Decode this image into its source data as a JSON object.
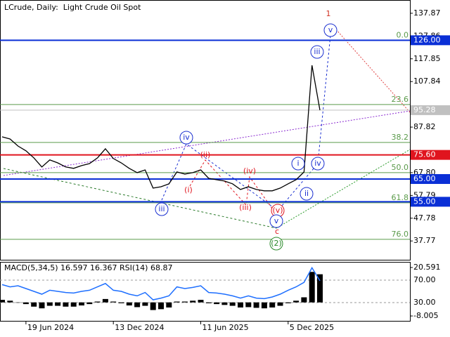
{
  "chart_data": [
    {
      "type": "line",
      "title": "LCrude, Daily:  Light Crude Oil Spot",
      "color": "#000000",
      "categories": [
        null,
        null,
        null,
        "19 Jun 2024",
        null,
        null,
        null,
        null,
        null,
        null,
        null,
        null,
        null,
        null,
        "13 Dec 2024",
        null,
        null,
        null,
        null,
        null,
        null,
        null,
        null,
        null,
        null,
        "11 Jun 2025",
        null,
        null,
        null,
        null,
        null,
        null,
        null,
        null,
        null,
        null,
        "5 Dec 2025",
        null,
        null,
        null,
        null
      ],
      "values": [
        83.55,
        82.6,
        79.5,
        77.4,
        74.3,
        70.3,
        73.4,
        72.1,
        70.3,
        69.7,
        70.9,
        71.8,
        74.3,
        78.3,
        74.0,
        72.1,
        69.7,
        67.8,
        69.0,
        61.0,
        61.6,
        62.9,
        68.1,
        67.2,
        67.8,
        69.0,
        65.3,
        64.7,
        64.1,
        62.9,
        60.4,
        61.6,
        60.4,
        59.8,
        59.8,
        61.0,
        62.9,
        64.7,
        68.1,
        115.0,
        95.28
      ],
      "ylim": [
        29.5,
        143.7
      ],
      "yticks": [
        137.87,
        127.86,
        117.85,
        107.84,
        87.82,
        {
          "value": 67.8,
          "label": "67.80"
        },
        57.79,
        47.78,
        37.77
      ],
      "levels": [
        {
          "value": 126,
          "label": "126.00",
          "color": "#0a2fd6"
        },
        {
          "value": 95.28,
          "label": "95.28",
          "color": "#c0c0c0"
        },
        {
          "value": 75.6,
          "label": "75.60",
          "color": "#e0141e"
        },
        {
          "value": 65,
          "label": "65.00",
          "color": "#0a2fd6"
        },
        {
          "value": 55,
          "label": "55.00",
          "color": "#0a2fd6"
        }
      ],
      "fib_levels": [
        {
          "value": 126,
          "label": "0.0"
        },
        {
          "value": 97.75,
          "label": "23.6"
        },
        {
          "value": 81.08,
          "label": "38.2"
        },
        {
          "value": 67.8,
          "label": "50.0"
        },
        {
          "value": 54.54,
          "label": "61.8"
        },
        {
          "value": 38.5,
          "label": "76.0"
        }
      ],
      "fib_color": "#5a9a4a",
      "annotations": [
        {
          "text": "1",
          "color": "#d03020",
          "circled": false
        },
        {
          "text": "v",
          "color": "#1a2fd0",
          "circled": true
        },
        {
          "text": "iii",
          "color": "#1a2fd0",
          "circled": true
        },
        {
          "text": "iv",
          "color": "#1a2fd0",
          "circled": true
        },
        {
          "text": "(ii)",
          "color": "#e0141e",
          "circled": false
        },
        {
          "text": "(i)",
          "color": "#e0141e",
          "circled": false
        },
        {
          "text": "iii",
          "color": "#1a2fd0",
          "circled": true
        },
        {
          "text": "(iv)",
          "color": "#e0141e",
          "circled": false
        },
        {
          "text": "(iii)",
          "color": "#e0141e",
          "circled": false
        },
        {
          "text": "(v)",
          "color": "#e0141e",
          "circled": true
        },
        {
          "text": "v",
          "color": "#1a2fd0",
          "circled": true
        },
        {
          "text": "c",
          "color": "#e0141e",
          "circled": false
        },
        {
          "text": "(2)",
          "color": "#2a8a2a",
          "circled": true
        },
        {
          "text": "i",
          "color": "#1a2fd0",
          "circled": true
        },
        {
          "text": "iv",
          "color": "#1a2fd0",
          "circled": true
        },
        {
          "text": "ii",
          "color": "#1a2fd0",
          "circled": true
        }
      ]
    },
    {
      "type": "line",
      "title": "MACD(5,34,5) 16.597 16.367 RSI(14) 68.87",
      "series": [
        {
          "color": "#000000",
          "axis": "y2",
          "values": [
            1.5,
            1,
            0,
            -1,
            -2.5,
            -3.5,
            -2,
            -2,
            -2.5,
            -2.5,
            -1.8,
            -1,
            0.5,
            2,
            0.5,
            -0.5,
            -1.8,
            -2.8,
            -2,
            -4.5,
            -4,
            -3,
            0.5,
            0.5,
            1,
            1.5,
            -0.5,
            -1,
            -1.5,
            -2,
            -3,
            -2.8,
            -3.2,
            -3.5,
            -3,
            -2,
            -0.5,
            1,
            3,
            18,
            16.597
          ]
        },
        {
          "color": "#1e6fff",
          "values": [
            62,
            58,
            60,
            55,
            50,
            45,
            52,
            50,
            48,
            47,
            50,
            52,
            58,
            64,
            52,
            50,
            45,
            42,
            48,
            35,
            38,
            42,
            58,
            55,
            57,
            60,
            48,
            47,
            45,
            42,
            38,
            42,
            38,
            37,
            40,
            45,
            52,
            58,
            66,
            92,
            68.87
          ]
        }
      ],
      "ylim": [
        -3.75,
        102.5
      ],
      "yticks": [
        {
          "value": 70,
          "label": "70.00"
        },
        {
          "value": 30,
          "label": "30.00"
        }
      ],
      "y2lim": [
        -11.3,
        23.9
      ],
      "y2ticks": [
        20.591,
        -8.005
      ]
    }
  ]
}
